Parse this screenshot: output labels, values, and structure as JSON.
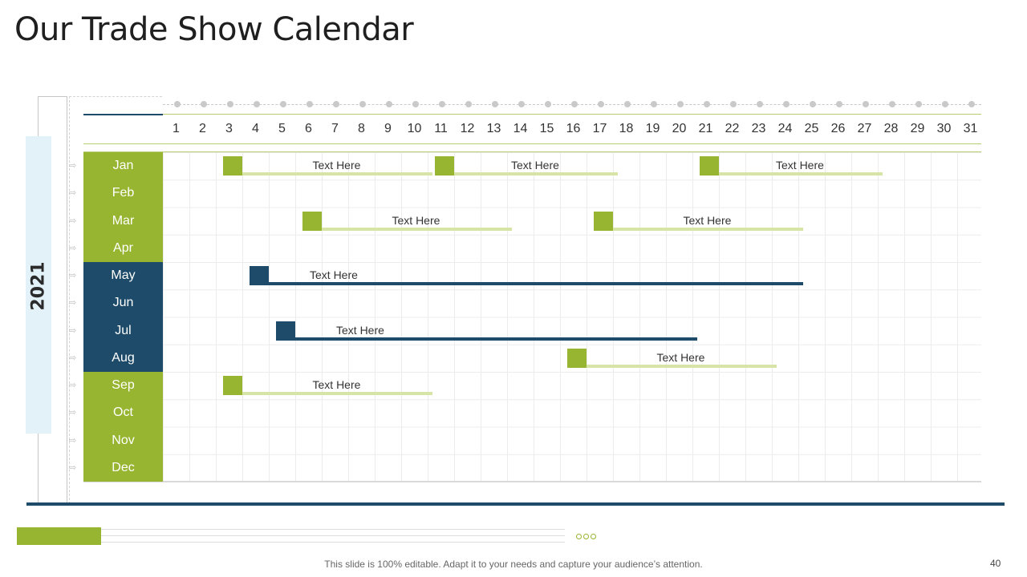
{
  "title": "Our Trade Show Calendar",
  "year": "2021",
  "days": [
    "1",
    "2",
    "3",
    "4",
    "5",
    "6",
    "7",
    "8",
    "9",
    "10",
    "11",
    "12",
    "13",
    "14",
    "15",
    "16",
    "17",
    "18",
    "19",
    "20",
    "21",
    "22",
    "23",
    "24",
    "25",
    "26",
    "27",
    "28",
    "29",
    "30",
    "31"
  ],
  "months": [
    {
      "label": "Jan",
      "color": "#97b531"
    },
    {
      "label": "Feb",
      "color": "#97b531"
    },
    {
      "label": "Mar",
      "color": "#97b531"
    },
    {
      "label": "Apr",
      "color": "#97b531"
    },
    {
      "label": "May",
      "color": "#1d4b69"
    },
    {
      "label": "Jun",
      "color": "#1d4b69"
    },
    {
      "label": "Jul",
      "color": "#1d4b69"
    },
    {
      "label": "Aug",
      "color": "#1d4b69"
    },
    {
      "label": "Sep",
      "color": "#97b531"
    },
    {
      "label": "Oct",
      "color": "#97b531"
    },
    {
      "label": "Nov",
      "color": "#97b531"
    },
    {
      "label": "Dec",
      "color": "#97b531"
    }
  ],
  "events": [
    {
      "month": "Jan",
      "start_day": 3,
      "end_day": 10,
      "label": "Text Here",
      "style": "green"
    },
    {
      "month": "Jan",
      "start_day": 11,
      "end_day": 17,
      "label": "Text Here",
      "style": "green"
    },
    {
      "month": "Jan",
      "start_day": 21,
      "end_day": 27,
      "label": "Text Here",
      "style": "green"
    },
    {
      "month": "Mar",
      "start_day": 6,
      "end_day": 13,
      "label": "Text Here",
      "style": "green"
    },
    {
      "month": "Mar",
      "start_day": 17,
      "end_day": 24,
      "label": "Text Here",
      "style": "green"
    },
    {
      "month": "May",
      "start_day": 4,
      "end_day": 24,
      "label": "Text Here",
      "style": "navy"
    },
    {
      "month": "Jul",
      "start_day": 5,
      "end_day": 20,
      "label": "Text Here",
      "style": "navy"
    },
    {
      "month": "Aug",
      "start_day": 16,
      "end_day": 23,
      "label": "Text Here",
      "style": "green"
    },
    {
      "month": "Sep",
      "start_day": 3,
      "end_day": 10,
      "label": "Text Here",
      "style": "green"
    }
  ],
  "colors": {
    "green": "#97b531",
    "green_light": "#d6e4a6",
    "navy": "#1d4b69",
    "year_panel": "#e3f1f9"
  },
  "progress": {
    "fraction": 0.15
  },
  "footer_text": "This slide is 100% editable. Adapt it to your needs and capture your audience’s attention.",
  "page_number": "40"
}
